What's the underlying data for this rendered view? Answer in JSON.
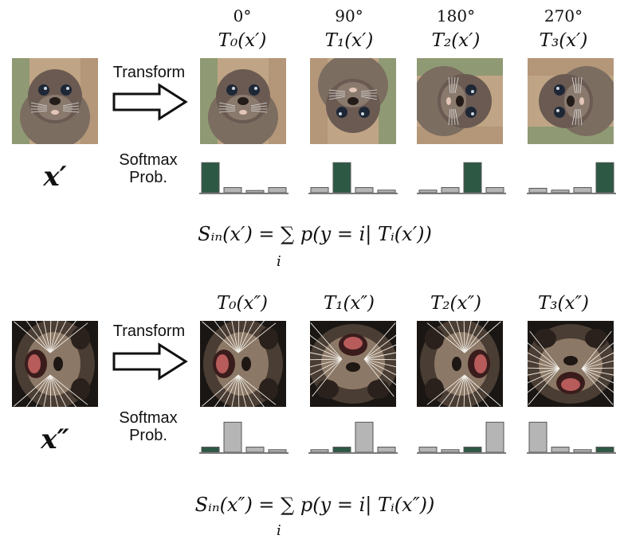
{
  "colors": {
    "prob_high": "#2d5944",
    "prob_low": "#b5b5b5",
    "baseline": "#7a7a7a",
    "fur1": "#6a5a52",
    "fur2": "#3a2d28",
    "bg1": "#bfa585",
    "bg2": "#1a1614"
  },
  "row1": {
    "input_label": "x′",
    "transform_label": "Transform",
    "softmax_label_1": "Softmax",
    "softmax_label_2": "Prob.",
    "angles": [
      "0°",
      "90°",
      "180°",
      "270°"
    ],
    "t_labels": [
      "T₀(x′)",
      "T₁(x′)",
      "T₂(x′)",
      "T₃(x′)"
    ],
    "formula": "Sᵢₙ(x′) = ∑ p(y = i| Tᵢ(x′))",
    "sum_index": "i",
    "icons": [
      "seal-pup-photo-0",
      "seal-pup-photo-90",
      "seal-pup-photo-180",
      "seal-pup-photo-270"
    ]
  },
  "row2": {
    "input_label": "x″",
    "transform_label": "Transform",
    "softmax_label_1": "Softmax",
    "softmax_label_2": "Prob.",
    "t_labels": [
      "T₀(x″)",
      "T₁(x″)",
      "T₂(x″)",
      "T₃(x″)"
    ],
    "formula": "Sᵢₙ(x″) = ∑ p(y = i| Tᵢ(x″))",
    "sum_index": "i",
    "icons": [
      "seal-whiskers-photo-a",
      "seal-whiskers-photo-b",
      "seal-whiskers-photo-c",
      "seal-whiskers-photo-d"
    ]
  },
  "chart_data": [
    {
      "type": "bar",
      "title": "",
      "categories": [
        "0",
        "1",
        "2",
        "3"
      ],
      "values": [
        0.82,
        0.14,
        0.06,
        0.14
      ],
      "ylim": [
        0,
        1
      ],
      "grid": false
    },
    {
      "type": "bar",
      "title": "",
      "categories": [
        "0",
        "1",
        "2",
        "3"
      ],
      "values": [
        0.14,
        0.82,
        0.14,
        0.07
      ],
      "ylim": [
        0,
        1
      ],
      "grid": false
    },
    {
      "type": "bar",
      "title": "",
      "categories": [
        "0",
        "1",
        "2",
        "3"
      ],
      "values": [
        0.07,
        0.14,
        0.82,
        0.14
      ],
      "ylim": [
        0,
        1
      ],
      "grid": false
    },
    {
      "type": "bar",
      "title": "",
      "categories": [
        "0",
        "1",
        "2",
        "3"
      ],
      "values": [
        0.12,
        0.07,
        0.14,
        0.82
      ],
      "ylim": [
        0,
        1
      ],
      "grid": false
    },
    {
      "type": "bar",
      "title": "",
      "categories": [
        "0",
        "1",
        "2",
        "3"
      ],
      "values": [
        0.14,
        0.82,
        0.14,
        0.07
      ],
      "ylim": [
        0,
        1
      ],
      "grid": false
    },
    {
      "type": "bar",
      "title": "",
      "categories": [
        "0",
        "1",
        "2",
        "3"
      ],
      "values": [
        0.07,
        0.14,
        0.82,
        0.14
      ],
      "ylim": [
        0,
        1
      ],
      "grid": false
    },
    {
      "type": "bar",
      "title": "",
      "categories": [
        "0",
        "1",
        "2",
        "3"
      ],
      "values": [
        0.14,
        0.07,
        0.14,
        0.82
      ],
      "ylim": [
        0,
        1
      ],
      "grid": false
    },
    {
      "type": "bar",
      "title": "",
      "categories": [
        "0",
        "1",
        "2",
        "3"
      ],
      "values": [
        0.82,
        0.14,
        0.07,
        0.14
      ],
      "ylim": [
        0,
        1
      ],
      "grid": false
    }
  ],
  "bar_highlight_index": [
    0,
    1,
    2,
    3,
    0,
    1,
    2,
    3
  ]
}
